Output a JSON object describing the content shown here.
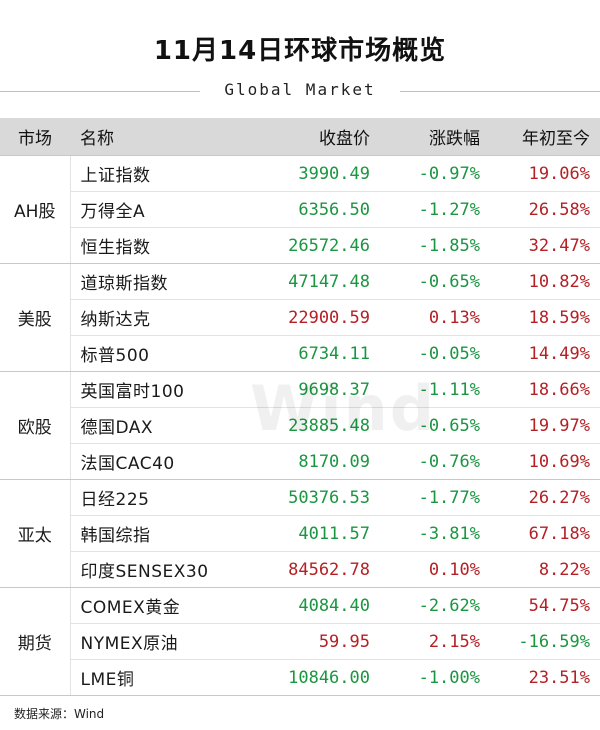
{
  "header": {
    "title": "11月14日环球市场概览",
    "subtitle": "Global Market"
  },
  "table": {
    "columns": [
      "市场",
      "名称",
      "收盘价",
      "涨跌幅",
      "年初至今"
    ],
    "groups": [
      {
        "market": "AH股",
        "rows": [
          {
            "name": "上证指数",
            "close": "3990.49",
            "change": "-0.97%",
            "ytd": "19.06%"
          },
          {
            "name": "万得全A",
            "close": "6356.50",
            "change": "-1.27%",
            "ytd": "26.58%"
          },
          {
            "name": "恒生指数",
            "close": "26572.46",
            "change": "-1.85%",
            "ytd": "32.47%"
          }
        ]
      },
      {
        "market": "美股",
        "rows": [
          {
            "name": "道琼斯指数",
            "close": "47147.48",
            "change": "-0.65%",
            "ytd": "10.82%"
          },
          {
            "name": "纳斯达克",
            "close": "22900.59",
            "change": "0.13%",
            "ytd": "18.59%"
          },
          {
            "name": "标普500",
            "close": "6734.11",
            "change": "-0.05%",
            "ytd": "14.49%"
          }
        ]
      },
      {
        "market": "欧股",
        "rows": [
          {
            "name": "英国富时100",
            "close": "9698.37",
            "change": "-1.11%",
            "ytd": "18.66%"
          },
          {
            "name": "德国DAX",
            "close": "23885.48",
            "change": "-0.65%",
            "ytd": "19.97%"
          },
          {
            "name": "法国CAC40",
            "close": "8170.09",
            "change": "-0.76%",
            "ytd": "10.69%"
          }
        ]
      },
      {
        "market": "亚太",
        "rows": [
          {
            "name": "日经225",
            "close": "50376.53",
            "change": "-1.77%",
            "ytd": "26.27%"
          },
          {
            "name": "韩国综指",
            "close": "4011.57",
            "change": "-3.81%",
            "ytd": "67.18%"
          },
          {
            "name": "印度SENSEX30",
            "close": "84562.78",
            "change": "0.10%",
            "ytd": "8.22%"
          }
        ]
      },
      {
        "market": "期货",
        "rows": [
          {
            "name": "COMEX黄金",
            "close": "4084.40",
            "change": "-2.62%",
            "ytd": "54.75%"
          },
          {
            "name": "NYMEX原油",
            "close": "59.95",
            "change": "2.15%",
            "ytd": "-16.59%"
          },
          {
            "name": "LME铜",
            "close": "10846.00",
            "change": "-1.00%",
            "ytd": "23.51%"
          }
        ]
      }
    ]
  },
  "watermark": "Wind",
  "footer": {
    "source": "数据来源：Wind"
  },
  "colors": {
    "up": "#b52025",
    "down": "#1a9641",
    "header_bg": "#d9d9d9"
  }
}
